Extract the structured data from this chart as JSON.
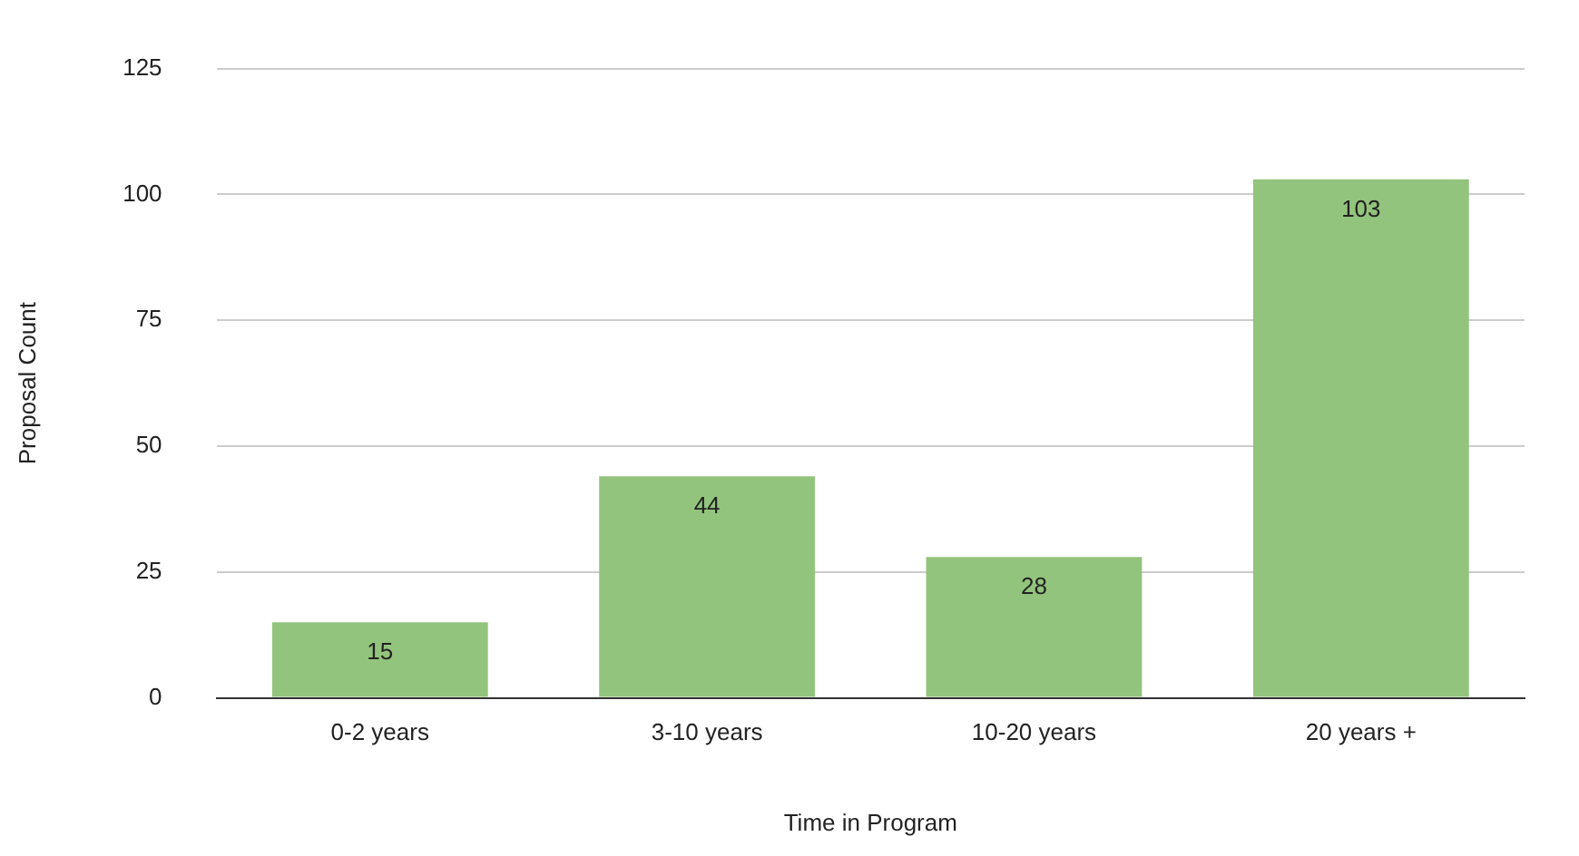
{
  "chart_data": {
    "type": "bar",
    "xlabel": "Time in Program",
    "ylabel": "Proposal Count",
    "categories": [
      "0-2 years",
      "3-10 years",
      "10-20 years",
      "20 years +"
    ],
    "values": [
      15,
      44,
      28,
      103
    ],
    "color": "#93c47d",
    "ylim": [
      0,
      125
    ],
    "yticks": [
      0,
      25,
      50,
      75,
      100,
      125
    ],
    "grid": "y",
    "data_labels": true,
    "legend": false
  }
}
